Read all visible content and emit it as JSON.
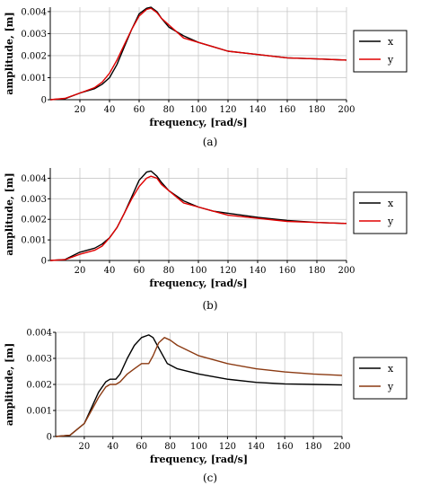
{
  "chart_data": [
    {
      "type": "line",
      "caption": "(a)",
      "xlabel": "frequency, [rad/s]",
      "ylabel": "amplitude, [m]",
      "xlim": [
        0,
        200
      ],
      "ylim": [
        0,
        0.0042
      ],
      "xticks": [
        20,
        40,
        60,
        80,
        100,
        120,
        140,
        160,
        180,
        200
      ],
      "yticks": [
        0,
        0.001,
        0.002,
        0.003,
        0.004
      ],
      "ytick_labels": [
        "0",
        "0.001",
        "0.002",
        "0.003",
        "0.004"
      ],
      "grid": true,
      "legend_position": "right",
      "series": [
        {
          "name": "x",
          "color": "#000000",
          "x": [
            0,
            10,
            20,
            30,
            35,
            40,
            45,
            50,
            55,
            60,
            65,
            68,
            72,
            75,
            80,
            90,
            100,
            110,
            120,
            140,
            160,
            180,
            200
          ],
          "y": [
            0,
            5e-05,
            0.0003,
            0.0005,
            0.0007,
            0.001,
            0.0016,
            0.0024,
            0.0032,
            0.0039,
            0.00415,
            0.0042,
            0.004,
            0.0037,
            0.0033,
            0.0029,
            0.0026,
            0.0024,
            0.0022,
            0.00205,
            0.0019,
            0.00185,
            0.0018
          ]
        },
        {
          "name": "y",
          "color": "#e00000",
          "x": [
            0,
            10,
            20,
            30,
            35,
            40,
            45,
            50,
            55,
            60,
            65,
            68,
            72,
            75,
            80,
            90,
            100,
            110,
            120,
            140,
            160,
            180,
            200
          ],
          "y": [
            0,
            6e-05,
            0.0003,
            0.00055,
            0.0008,
            0.0012,
            0.0018,
            0.0025,
            0.0032,
            0.0038,
            0.0041,
            0.00415,
            0.00395,
            0.0037,
            0.0034,
            0.0028,
            0.0026,
            0.0024,
            0.0022,
            0.00205,
            0.0019,
            0.00185,
            0.0018
          ]
        }
      ]
    },
    {
      "type": "line",
      "caption": "(b)",
      "xlabel": "frequency, [rad/s]",
      "ylabel": "amplitude, [m]",
      "xlim": [
        0,
        200
      ],
      "ylim": [
        0,
        0.0045
      ],
      "xticks": [
        20,
        40,
        60,
        80,
        100,
        120,
        140,
        160,
        180,
        200
      ],
      "yticks": [
        0,
        0.001,
        0.002,
        0.003,
        0.004
      ],
      "ytick_labels": [
        "0",
        "0.001",
        "0.002",
        "0.003",
        "0.004"
      ],
      "grid": true,
      "legend_position": "right",
      "series": [
        {
          "name": "x",
          "color": "#000000",
          "x": [
            0,
            10,
            20,
            30,
            35,
            40,
            45,
            50,
            55,
            60,
            65,
            68,
            72,
            75,
            80,
            90,
            100,
            110,
            120,
            140,
            160,
            180,
            200
          ],
          "y": [
            0,
            5e-05,
            0.0004,
            0.0006,
            0.0008,
            0.0011,
            0.0016,
            0.0023,
            0.0031,
            0.0039,
            0.0043,
            0.00435,
            0.0041,
            0.0038,
            0.0034,
            0.0029,
            0.0026,
            0.0024,
            0.0023,
            0.0021,
            0.00195,
            0.00185,
            0.0018
          ]
        },
        {
          "name": "y",
          "color": "#e00000",
          "x": [
            0,
            10,
            20,
            30,
            35,
            40,
            45,
            50,
            55,
            60,
            65,
            68,
            72,
            75,
            80,
            90,
            100,
            110,
            120,
            140,
            160,
            180,
            200
          ],
          "y": [
            0,
            4e-05,
            0.0003,
            0.0005,
            0.0007,
            0.0011,
            0.0016,
            0.0023,
            0.003,
            0.0036,
            0.004,
            0.0041,
            0.004,
            0.0037,
            0.0034,
            0.0028,
            0.0026,
            0.0024,
            0.0022,
            0.00205,
            0.0019,
            0.00185,
            0.0018
          ]
        }
      ]
    },
    {
      "type": "line",
      "caption": "(c)",
      "xlabel": "frequency, [rad/s]",
      "ylabel": "amplitude, [m]",
      "xlim": [
        0,
        200
      ],
      "ylim": [
        0,
        0.004
      ],
      "xticks": [
        20,
        40,
        60,
        80,
        100,
        120,
        140,
        160,
        180,
        200
      ],
      "yticks": [
        0,
        0.001,
        0.002,
        0.003,
        0.004
      ],
      "ytick_labels": [
        "0",
        "0.001",
        "0.002",
        "0.003",
        "0.004"
      ],
      "grid": true,
      "legend_position": "right",
      "series": [
        {
          "name": "x",
          "color": "#000000",
          "x": [
            0,
            10,
            20,
            25,
            30,
            35,
            38,
            42,
            45,
            50,
            55,
            60,
            65,
            68,
            72,
            78,
            85,
            100,
            120,
            140,
            160,
            180,
            200
          ],
          "y": [
            0,
            5e-05,
            0.0005,
            0.0011,
            0.0017,
            0.0021,
            0.0022,
            0.0022,
            0.0024,
            0.003,
            0.0035,
            0.0038,
            0.0039,
            0.0038,
            0.0034,
            0.0028,
            0.0026,
            0.0024,
            0.0022,
            0.00208,
            0.00202,
            0.002,
            0.00198
          ]
        },
        {
          "name": "y",
          "color": "#8b3a12",
          "x": [
            0,
            10,
            20,
            25,
            30,
            35,
            38,
            42,
            45,
            50,
            55,
            60,
            65,
            68,
            72,
            76,
            80,
            85,
            100,
            120,
            140,
            160,
            180,
            200
          ],
          "y": [
            0,
            5e-05,
            0.0005,
            0.001,
            0.0015,
            0.0019,
            0.002,
            0.002,
            0.0021,
            0.0024,
            0.0026,
            0.0028,
            0.0028,
            0.0031,
            0.0036,
            0.0038,
            0.0037,
            0.0035,
            0.0031,
            0.0028,
            0.0026,
            0.00248,
            0.0024,
            0.00235
          ]
        }
      ]
    }
  ]
}
